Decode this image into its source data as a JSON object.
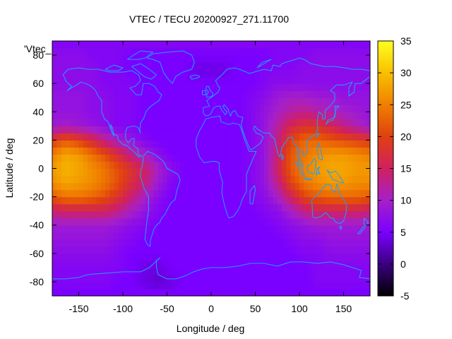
{
  "chart_data": {
    "type": "heatmap",
    "title": "VTEC / TECU 20200927_271.11700",
    "xlabel": "Longitude / deg",
    "ylabel": "Latitude / deg",
    "legend_label": "'Vtec_",
    "xlim": [
      -180,
      180
    ],
    "ylim": [
      -90,
      90
    ],
    "x_ticks": [
      -150,
      -100,
      -50,
      0,
      50,
      100,
      150
    ],
    "y_ticks": [
      -80,
      -60,
      -40,
      -20,
      0,
      20,
      40,
      60,
      80
    ],
    "colorbar": {
      "range": [
        -5,
        35
      ],
      "ticks": [
        -5,
        0,
        5,
        10,
        15,
        20,
        25,
        30,
        35
      ],
      "palette": "black-purple-red-orange-yellow",
      "colors": [
        "#000000",
        "#3a0080",
        "#7a00ff",
        "#a620c8",
        "#d02060",
        "#e04010",
        "#f08000",
        "#f8c000",
        "#ffff20"
      ]
    },
    "coastline_color": "#1ea0ff",
    "grid": false,
    "x_values": [
      -180,
      -165,
      -150,
      -135,
      -120,
      -105,
      -90,
      -75,
      -60,
      -45,
      -30,
      -15,
      0,
      15,
      30,
      45,
      60,
      75,
      90,
      105,
      120,
      135,
      150,
      165,
      180
    ],
    "y_values": [
      -87.5,
      -80,
      -70,
      -60,
      -50,
      -40,
      -30,
      -20,
      -10,
      0,
      10,
      20,
      30,
      40,
      50,
      60,
      70,
      80,
      87.5
    ],
    "z_values": [
      [
        5,
        5,
        5,
        5,
        5,
        5,
        5,
        5,
        5,
        5,
        5,
        5,
        5,
        5,
        5,
        5,
        5,
        5,
        5,
        5,
        5,
        5,
        5,
        5,
        5
      ],
      [
        6,
        6,
        6,
        6,
        6,
        5,
        5,
        4,
        3,
        4,
        5,
        5,
        5,
        5,
        5,
        5,
        5,
        5,
        5,
        5,
        6,
        6,
        6,
        6,
        6
      ],
      [
        6,
        6,
        6,
        6,
        6,
        6,
        5,
        4,
        4,
        5,
        5,
        5,
        5,
        5,
        5,
        5,
        5,
        5,
        5,
        5,
        6,
        6,
        6,
        6,
        6
      ],
      [
        7,
        7,
        7,
        7,
        7,
        6,
        5,
        5,
        5,
        5,
        5,
        5,
        5,
        5,
        5,
        5,
        5,
        5,
        5,
        6,
        6,
        7,
        7,
        7,
        7
      ],
      [
        8,
        8,
        8,
        8,
        8,
        7,
        6,
        5,
        5,
        5,
        5,
        5,
        5,
        5,
        5,
        5,
        5,
        5,
        6,
        7,
        7,
        8,
        8,
        8,
        8
      ],
      [
        9,
        9,
        9,
        9,
        9,
        8,
        7,
        6,
        5,
        5,
        5,
        5,
        5,
        5,
        5,
        5,
        5,
        6,
        7,
        8,
        9,
        9,
        9,
        9,
        9
      ],
      [
        14,
        15,
        15,
        15,
        15,
        13,
        10,
        8,
        6,
        5,
        5,
        5,
        5,
        5,
        5,
        5,
        6,
        7,
        10,
        13,
        15,
        15,
        15,
        15,
        14
      ],
      [
        22,
        24,
        24,
        23,
        21,
        18,
        14,
        10,
        7,
        5,
        5,
        5,
        5,
        5,
        5,
        6,
        7,
        10,
        15,
        20,
        22,
        23,
        23,
        23,
        22
      ],
      [
        26,
        28,
        27,
        26,
        24,
        21,
        17,
        14,
        9,
        6,
        5,
        5,
        5,
        5,
        5,
        6,
        8,
        13,
        20,
        24,
        26,
        27,
        27,
        26,
        26
      ],
      [
        27,
        29,
        28,
        26,
        24,
        21,
        18,
        15,
        10,
        7,
        5,
        5,
        5,
        5,
        5,
        6,
        8,
        15,
        22,
        25,
        27,
        28,
        28,
        27,
        27
      ],
      [
        25,
        28,
        27,
        24,
        21,
        17,
        13,
        10,
        7,
        5,
        5,
        5,
        5,
        5,
        5,
        6,
        8,
        14,
        22,
        24,
        26,
        27,
        27,
        26,
        25
      ],
      [
        19,
        22,
        20,
        17,
        13,
        10,
        8,
        6,
        5,
        5,
        5,
        5,
        5,
        5,
        5,
        6,
        8,
        13,
        20,
        23,
        23,
        22,
        21,
        20,
        19
      ],
      [
        9,
        10,
        9,
        8,
        7,
        6,
        6,
        5,
        5,
        5,
        5,
        5,
        5,
        5,
        5,
        6,
        8,
        12,
        16,
        18,
        18,
        16,
        13,
        11,
        9
      ],
      [
        8,
        8,
        8,
        7,
        7,
        6,
        6,
        5,
        5,
        5,
        5,
        5,
        5,
        5,
        5,
        6,
        8,
        10,
        12,
        13,
        12,
        11,
        10,
        9,
        8
      ],
      [
        8,
        8,
        8,
        7,
        7,
        6,
        6,
        5,
        5,
        5,
        5,
        5,
        5,
        5,
        5,
        6,
        7,
        9,
        10,
        10,
        9,
        9,
        8,
        8,
        8
      ],
      [
        7,
        7,
        7,
        7,
        6,
        6,
        6,
        5,
        5,
        5,
        5,
        5,
        5,
        5,
        5,
        5,
        6,
        7,
        7,
        7,
        7,
        7,
        7,
        7,
        7
      ],
      [
        7,
        7,
        7,
        7,
        6,
        6,
        5,
        5,
        5,
        5,
        5,
        4,
        4,
        4,
        5,
        5,
        6,
        6,
        6,
        7,
        7,
        7,
        7,
        7,
        7
      ],
      [
        7,
        7,
        7,
        6,
        6,
        6,
        5,
        5,
        5,
        5,
        5,
        5,
        5,
        5,
        5,
        5,
        5,
        6,
        6,
        6,
        7,
        7,
        7,
        7,
        7
      ],
      [
        6,
        6,
        6,
        6,
        6,
        6,
        6,
        6,
        6,
        6,
        6,
        6,
        6,
        6,
        6,
        6,
        6,
        6,
        6,
        6,
        6,
        6,
        6,
        6,
        6
      ]
    ]
  }
}
